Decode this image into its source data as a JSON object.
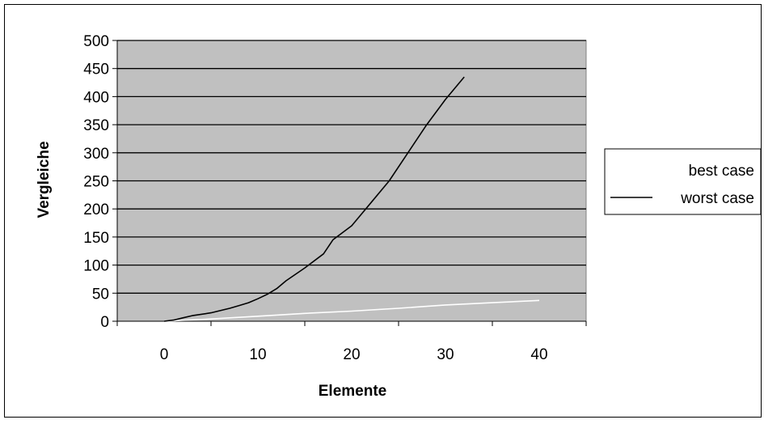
{
  "chart_data": {
    "type": "line",
    "xlabel": "Elemente",
    "ylabel": "Vergleiche",
    "xlim": [
      -5,
      45
    ],
    "ylim": [
      0,
      500
    ],
    "xticks": [
      0,
      10,
      20,
      30,
      40
    ],
    "yticks": [
      0,
      50,
      100,
      150,
      200,
      250,
      300,
      350,
      400,
      450,
      500
    ],
    "grid": "horizontal",
    "plot_background": "#c0c0c0",
    "legend_position": "right",
    "series": [
      {
        "name": "best case",
        "color": "#ffffff",
        "points": [
          [
            0,
            0
          ],
          [
            5,
            4
          ],
          [
            10,
            9
          ],
          [
            15,
            14
          ],
          [
            20,
            18
          ],
          [
            25,
            23
          ],
          [
            30,
            29
          ],
          [
            35,
            33
          ],
          [
            40,
            37
          ]
        ]
      },
      {
        "name": "worst case",
        "color": "#000000",
        "points": [
          [
            0,
            0
          ],
          [
            1,
            2
          ],
          [
            2,
            6
          ],
          [
            3,
            10
          ],
          [
            5,
            15
          ],
          [
            7,
            23
          ],
          [
            8,
            28
          ],
          [
            9,
            33
          ],
          [
            10,
            40
          ],
          [
            11,
            48
          ],
          [
            12,
            58
          ],
          [
            13,
            72
          ],
          [
            15,
            95
          ],
          [
            17,
            120
          ],
          [
            18,
            145
          ],
          [
            20,
            170
          ],
          [
            22,
            210
          ],
          [
            24,
            250
          ],
          [
            26,
            300
          ],
          [
            28,
            350
          ],
          [
            30,
            395
          ],
          [
            32,
            435
          ]
        ]
      }
    ]
  }
}
